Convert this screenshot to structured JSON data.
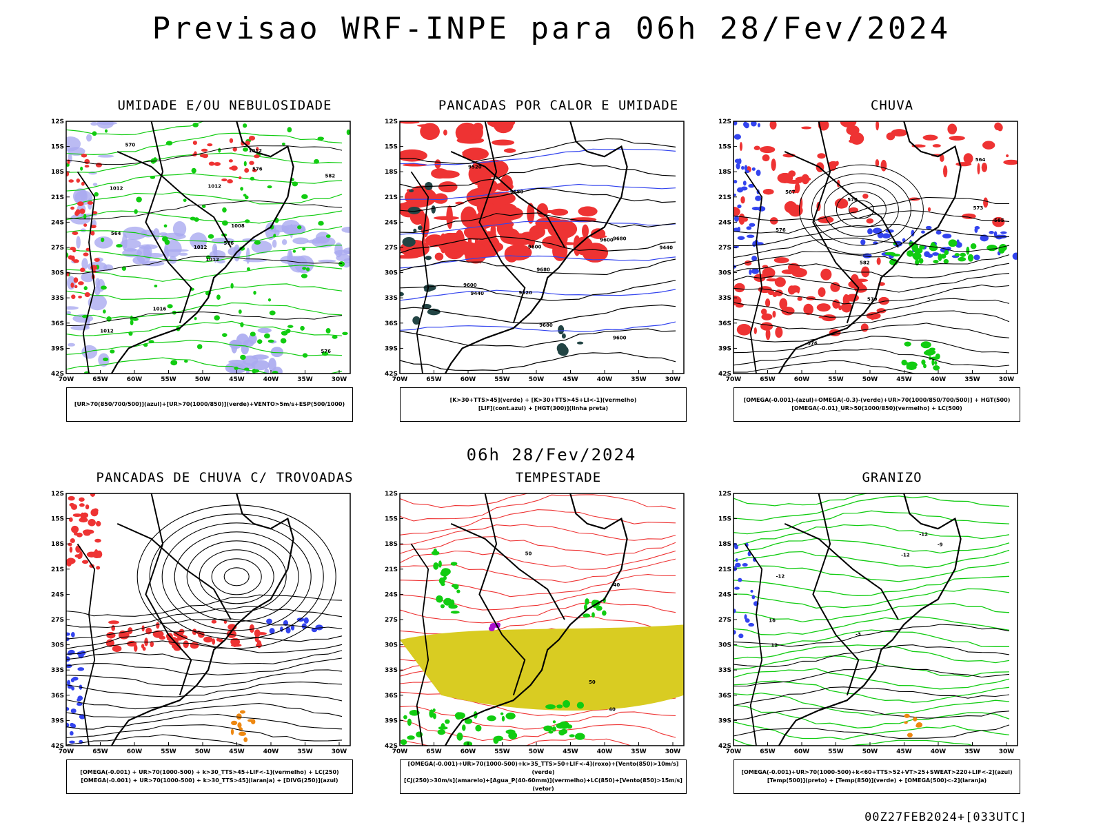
{
  "title": "Previsao WRF-INPE  para 06h 28/Fev/2024",
  "mid_title": "06h 28/Fev/2024",
  "footer": "00Z27FEB2024+[033UTC]",
  "axes": {
    "lat_labels": [
      "12S",
      "15S",
      "18S",
      "21S",
      "24S",
      "27S",
      "30S",
      "33S",
      "36S",
      "39S",
      "42S"
    ],
    "lon_labels": [
      "70W",
      "65W",
      "60W",
      "55W",
      "50W",
      "45W",
      "40W",
      "35W",
      "30W"
    ]
  },
  "panels": [
    {
      "title": "UMIDADE E/OU NEBULOSIDADE",
      "legend": [
        "[UR>70(850/700/500)](azul)+[UR>70(1000/850)](verde)+VENTO>5m/s+ESP(500/1000)"
      ],
      "contour_labels": [
        "1012",
        "1012",
        "1012",
        "1012",
        "1008",
        "1016",
        "1012",
        "1012",
        "576",
        "576",
        "570",
        "576",
        "564",
        "582"
      ]
    },
    {
      "title": "PANCADAS POR CALOR E UMIDADE",
      "legend": [
        "[K>30+TTS>45](verde) + [K>30+TTS>45+LI<-1](vermelho)",
        "[LIF](cont.azul) + [HGT(300)](linha preta)"
      ],
      "contour_labels": [
        "9600",
        "9600",
        "9680",
        "9680",
        "9680",
        "9680",
        "9600",
        "9600",
        "9520",
        "9440",
        "9440",
        "9520"
      ]
    },
    {
      "title": "CHUVA",
      "legend": [
        "[OMEGA(-0.001)-(azul)+OMEGA(-0.3)-(verde)+UR>70(1000/850/700/500)] + HGT(500)",
        "[OMEGA(-0.01)_UR>50(1000/850)(vermelho) + LC(500)"
      ],
      "contour_labels": [
        "585",
        "582",
        "576",
        "573",
        "570",
        "579",
        "576",
        "564",
        "567"
      ]
    },
    {
      "title": "PANCADAS DE CHUVA C/ TROVOADAS",
      "legend": [
        "[OMEGA(-0.001) + UR>70(1000-500) + k>30_TTS>45+LIF<-1](vermelho) + LC(250)",
        "[OMEGA(-0.001) + UR>70(1000-500) + k>30_TTS>45](laranja) + [DIVG(250)](azul)"
      ],
      "contour_labels": []
    },
    {
      "title": "TEMPESTADE",
      "legend": [
        "[OMEGA(-0.001)+UR>70(1000-500)+k>35_TTS>50+LIF<-4](roxo)+[Vento(850)>10m/s](verde)",
        "[CJ(250)>30m/s](amarelo)+[Agua_P(40-60mm)](vermelho)+LC(850)+[Vento(850)>15m/s](vetor)"
      ],
      "contour_labels": [
        "50",
        "40",
        "40",
        "50"
      ]
    },
    {
      "title": "GRANIZO",
      "legend": [
        "[OMEGA(-0.001)+UR>70(1000-500)+k<60+TTS>52+VT>25+SWEAT>220+LIF<-2](azul)",
        "[Temp(500)](preto) + [Temp(850)](verde) + [OMEGA(500)<-2](laranja)"
      ],
      "contour_labels": [
        "-12",
        "-3",
        "-12",
        "16",
        "12",
        "-9",
        "-12"
      ]
    }
  ],
  "colors": {
    "blue": "#3344ee",
    "green": "#11cc11",
    "red": "#ee3333",
    "orange": "#ee8811",
    "yellow": "#d9cc22",
    "lavender": "#aaaaf0",
    "dkgreen": "#224444",
    "purple": "#aa11cc"
  }
}
